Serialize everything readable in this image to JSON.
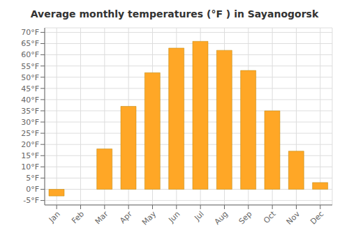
{
  "chart_data": {
    "type": "bar",
    "title": "Average monthly temperatures (°F ) in Sayanogorsk",
    "categories": [
      "Jan",
      "Feb",
      "Mar",
      "Apr",
      "May",
      "Jun",
      "Jul",
      "Aug",
      "Sep",
      "Oct",
      "Nov",
      "Dec"
    ],
    "values": [
      -3,
      0,
      18,
      37,
      52,
      63,
      66,
      62,
      53,
      35,
      17,
      3
    ],
    "color": "#FFA726",
    "ylim": [
      -7,
      72
    ],
    "yticks": [
      {
        "value": -5,
        "label": "-5°F"
      },
      {
        "value": 0,
        "label": "0°F"
      },
      {
        "value": 5,
        "label": "5°F"
      },
      {
        "value": 10,
        "label": "10°F"
      },
      {
        "value": 15,
        "label": "15°F"
      },
      {
        "value": 20,
        "label": "20°F"
      },
      {
        "value": 25,
        "label": "25°F"
      },
      {
        "value": 30,
        "label": "30°F"
      },
      {
        "value": 35,
        "label": "35°F"
      },
      {
        "value": 40,
        "label": "40°F"
      },
      {
        "value": 45,
        "label": "45°F"
      },
      {
        "value": 50,
        "label": "50°F"
      },
      {
        "value": 55,
        "label": "55°F"
      },
      {
        "value": 60,
        "label": "60°F"
      },
      {
        "value": 65,
        "label": "65°F"
      },
      {
        "value": 70,
        "label": "70°F"
      }
    ],
    "grid": true
  }
}
